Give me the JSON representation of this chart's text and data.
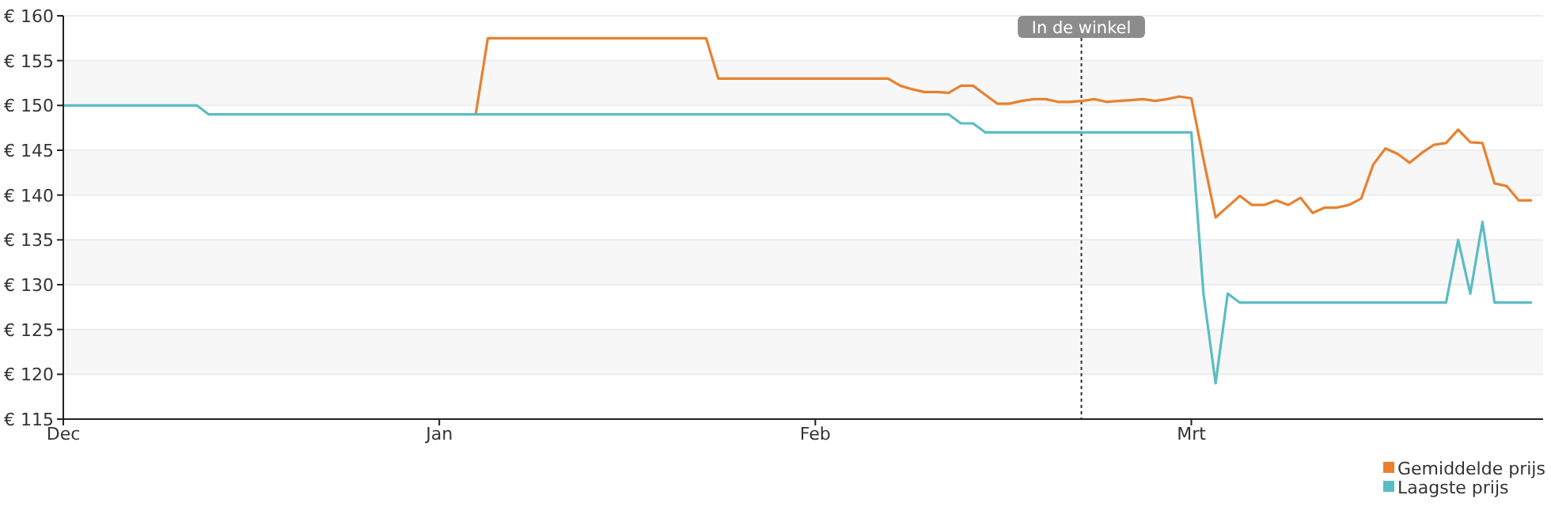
{
  "chart_data": {
    "type": "line",
    "categories": [
      "Dec",
      null,
      null,
      null,
      null,
      null,
      null,
      null,
      null,
      null,
      null,
      null,
      null,
      null,
      null,
      null,
      null,
      null,
      null,
      null,
      null,
      null,
      null,
      null,
      null,
      null,
      null,
      null,
      null,
      null,
      null,
      "Jan",
      null,
      null,
      null,
      null,
      null,
      null,
      null,
      null,
      null,
      null,
      null,
      null,
      null,
      null,
      null,
      null,
      null,
      null,
      null,
      null,
      null,
      null,
      null,
      null,
      null,
      null,
      null,
      null,
      null,
      null,
      "Feb",
      null,
      null,
      null,
      null,
      null,
      null,
      null,
      null,
      null,
      null,
      null,
      null,
      null,
      null,
      null,
      null,
      null,
      null,
      null,
      null,
      null,
      null,
      null,
      null,
      null,
      null,
      null,
      null,
      null,
      null,
      "Mrt",
      null,
      null,
      null,
      null,
      null,
      null,
      null,
      null,
      null,
      null,
      null,
      null,
      null,
      null,
      null,
      null,
      null,
      null,
      null,
      null,
      null,
      null,
      null,
      null,
      null,
      null,
      null,
      null
    ],
    "series": [
      {
        "name": "Gemiddelde prijs",
        "color": "#e8812f",
        "values": [
          null,
          null,
          null,
          null,
          null,
          null,
          null,
          null,
          null,
          null,
          null,
          null,
          null,
          null,
          null,
          null,
          null,
          null,
          null,
          null,
          null,
          null,
          null,
          null,
          null,
          null,
          null,
          null,
          null,
          null,
          null,
          null,
          null,
          null,
          149,
          157.5,
          157.5,
          157.5,
          157.5,
          157.5,
          157.5,
          157.5,
          157.5,
          157.5,
          157.5,
          157.5,
          157.5,
          157.5,
          157.5,
          157.5,
          157.5,
          157.5,
          157.5,
          157.5,
          153,
          153,
          153,
          153,
          153,
          153,
          153,
          153,
          153,
          153,
          153,
          153,
          153,
          153,
          153,
          152.2,
          151.8,
          151.5,
          151.5,
          151.4,
          152.2,
          152.2,
          151.2,
          150.2,
          150.2,
          150.5,
          150.7,
          150.7,
          150.4,
          150.4,
          150.5,
          150.7,
          150.4,
          150.5,
          150.6,
          150.7,
          150.5,
          150.7,
          151,
          150.8,
          144,
          137.5,
          138.7,
          139.9,
          138.9,
          138.9,
          139.4,
          138.9,
          139.7,
          138,
          138.6,
          138.6,
          138.9,
          139.6,
          143.4,
          145.2,
          144.6,
          143.6,
          144.7,
          145.6,
          145.8,
          147.3,
          145.9,
          145.8,
          141.3,
          141,
          139.4,
          139.4
        ]
      },
      {
        "name": "Laagste prijs",
        "color": "#5bbcc4",
        "values": [
          150,
          150,
          150,
          150,
          150,
          150,
          150,
          150,
          150,
          150,
          150,
          150,
          149,
          149,
          149,
          149,
          149,
          149,
          149,
          149,
          149,
          149,
          149,
          149,
          149,
          149,
          149,
          149,
          149,
          149,
          149,
          149,
          149,
          149,
          149,
          149,
          149,
          149,
          149,
          149,
          149,
          149,
          149,
          149,
          149,
          149,
          149,
          149,
          149,
          149,
          149,
          149,
          149,
          149,
          149,
          149,
          149,
          149,
          149,
          149,
          149,
          149,
          149,
          149,
          149,
          149,
          149,
          149,
          149,
          149,
          149,
          149,
          149,
          149,
          148,
          148,
          147,
          147,
          147,
          147,
          147,
          147,
          147,
          147,
          147,
          147,
          147,
          147,
          147,
          147,
          147,
          147,
          147,
          147,
          129,
          119,
          129,
          128,
          128,
          128,
          128,
          128,
          128,
          128,
          128,
          128,
          128,
          128,
          128,
          128,
          128,
          128,
          128,
          128,
          128,
          135,
          129,
          137,
          128,
          128,
          128,
          128
        ]
      }
    ],
    "ylim": [
      115,
      160
    ],
    "yticks": [
      {
        "value": 115,
        "label": "€ 115"
      },
      {
        "value": 120,
        "label": "€ 120"
      },
      {
        "value": 125,
        "label": "€ 125"
      },
      {
        "value": 130,
        "label": "€ 130"
      },
      {
        "value": 135,
        "label": "€ 135"
      },
      {
        "value": 140,
        "label": "€ 140"
      },
      {
        "value": 145,
        "label": "€ 145"
      },
      {
        "value": 150,
        "label": "€ 150"
      },
      {
        "value": 155,
        "label": "€ 155"
      },
      {
        "value": 160,
        "label": "€ 160"
      }
    ],
    "grid": "y",
    "legend": "bottom right",
    "marker": "none",
    "line_style": "solid",
    "annotations": [
      "In de winkel"
    ]
  }
}
